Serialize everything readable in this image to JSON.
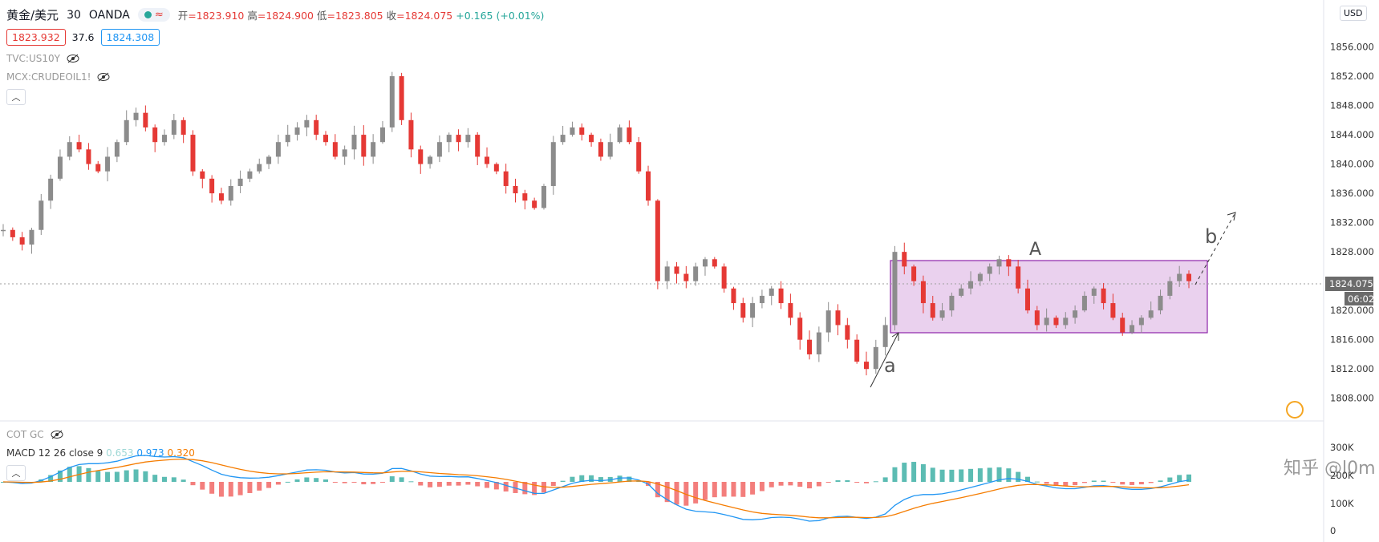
{
  "header": {
    "symbol": "黄金/美元",
    "interval": "30",
    "exchange": "OANDA",
    "approx_sign": "≈",
    "ohlc": {
      "open_label": "开",
      "open": "=1823.910",
      "high_label": "高",
      "high": "=1824.900",
      "low_label": "低",
      "low": "=1823.805",
      "close_label": "收",
      "close": "=1824.075",
      "change": "+0.165 (+0.01%)"
    },
    "bid": "1823.932",
    "spread": "37.6",
    "ask": "1824.308"
  },
  "indicators": {
    "ind1": "TVC:US10Y",
    "ind2": "MCX:CRUDEOIL1!",
    "cot": "COT GC",
    "macd_name": "MACD 12 26 close 9",
    "macd_hist": "0.653",
    "macd_line": "0.973",
    "macd_signal": "0.320"
  },
  "price_axis": {
    "currency": "USD",
    "current_price": "1824.075",
    "countdown": "06:02"
  },
  "annotations": {
    "range_label": "A",
    "label_a": "a",
    "label_b": "b"
  },
  "watermark": "知乎 @l0m",
  "colors": {
    "up": "#8c8c8c",
    "down": "#e53935",
    "range_fill": "#e1bee7",
    "range_border": "#8e24aa",
    "macd": "#2196f3",
    "signal": "#f57c00"
  },
  "chart_data": {
    "type": "candlestick",
    "ylim": [
      1806,
      1860
    ],
    "y_ticks": [
      "1856.000",
      "1852.000",
      "1848.000",
      "1844.000",
      "1840.000",
      "1836.000",
      "1832.000",
      "1828.000",
      "1824.000",
      "1820.000",
      "1816.000",
      "1812.000",
      "1808.000"
    ],
    "macd_ticks": [
      "300K",
      "200K",
      "100K",
      "0"
    ],
    "range_box": {
      "low": 1817.5,
      "high": 1827.2
    },
    "close_path": [
      1831,
      1830,
      1829,
      1831,
      1835,
      1838,
      1841,
      1843,
      1842,
      1840,
      1839,
      1841,
      1843,
      1846,
      1847,
      1845,
      1843,
      1844,
      1846,
      1844,
      1839,
      1838,
      1836,
      1835,
      1837,
      1838,
      1839,
      1840,
      1841,
      1843,
      1844,
      1845,
      1846,
      1844,
      1843,
      1841,
      1842,
      1844,
      1841,
      1843,
      1845,
      1852,
      1846,
      1842,
      1840,
      1841,
      1843,
      1844,
      1843,
      1844,
      1841,
      1840,
      1839,
      1837,
      1836,
      1835,
      1834,
      1837,
      1843,
      1844,
      1845,
      1844,
      1843,
      1841,
      1843,
      1845,
      1843,
      1839,
      1835,
      1824,
      1826,
      1825,
      1824,
      1826,
      1827,
      1826,
      1823,
      1821,
      1819,
      1821,
      1822,
      1823,
      1821,
      1819,
      1816,
      1814,
      1817,
      1820,
      1818,
      1816,
      1813,
      1812,
      1815,
      1818,
      1828,
      1826,
      1824,
      1821,
      1819,
      1820,
      1822,
      1823,
      1824,
      1825,
      1826,
      1827,
      1826,
      1823,
      1820,
      1818,
      1819,
      1818,
      1819,
      1820,
      1822,
      1823,
      1821,
      1819,
      1817,
      1818,
      1819,
      1820,
      1822,
      1824,
      1825,
      1824
    ]
  }
}
